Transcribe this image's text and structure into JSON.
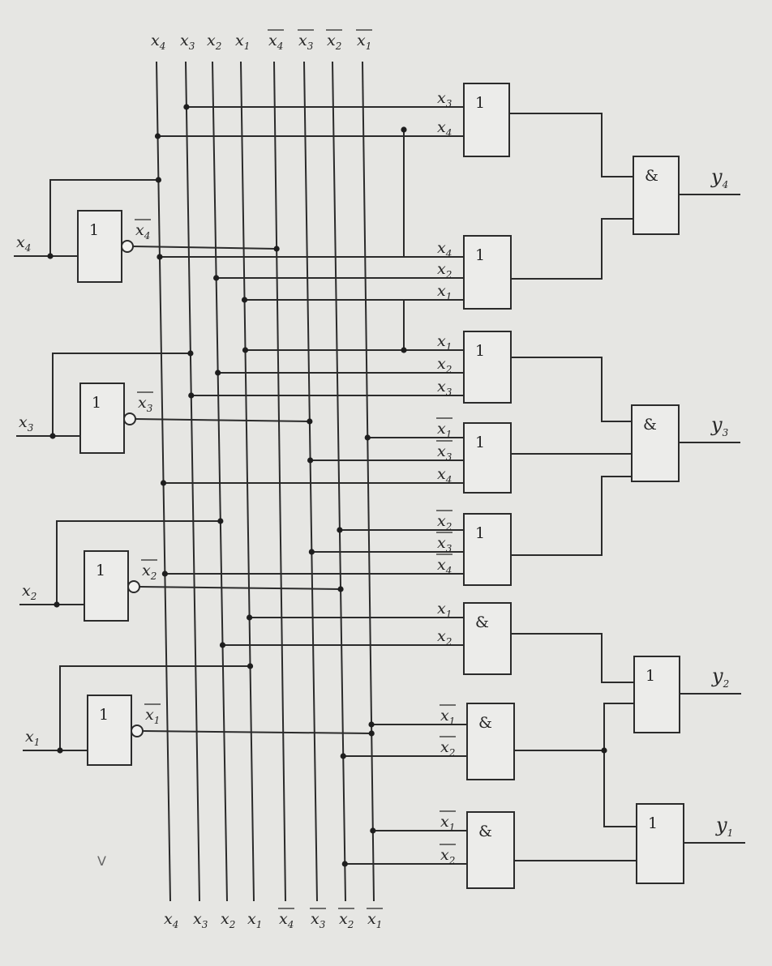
{
  "bus_labels_top": [
    "x4",
    "x3",
    "x2",
    "x1",
    "x̄4",
    "x̄3",
    "x̄2",
    "x̄1"
  ],
  "bus_labels_bottom": [
    "x4",
    "x3",
    "x2",
    "x1",
    "x̄4",
    "x̄3",
    "x̄2",
    "x̄1"
  ],
  "inputs": [
    "x4",
    "x3",
    "x2",
    "x1"
  ],
  "inverter_symbol": "1",
  "inverter_outputs": [
    "x̄4",
    "x̄3",
    "x̄2",
    "x̄1"
  ],
  "outputs": [
    "y4",
    "y3",
    "y2",
    "y1"
  ],
  "gates": [
    {
      "symbol": "1",
      "inputs": [
        "x3",
        "x4"
      ]
    },
    {
      "symbol": "1",
      "inputs": [
        "x4",
        "x2",
        "x1"
      ]
    },
    {
      "symbol": "1",
      "inputs": [
        "x1",
        "x2",
        "x3"
      ]
    },
    {
      "symbol": "1",
      "inputs": [
        "x̄1",
        "x̄3",
        "x4"
      ]
    },
    {
      "symbol": "1",
      "inputs": [
        "x̄2",
        "x̄3",
        "x̄4"
      ]
    },
    {
      "symbol": "&",
      "inputs": [
        "x1",
        "x2"
      ]
    },
    {
      "symbol": "&",
      "inputs": [
        "x̄1",
        "x̄2"
      ]
    },
    {
      "symbol": "&",
      "inputs": [
        "x̄1",
        "x̄2"
      ]
    }
  ],
  "output_gates": [
    {
      "symbol": "&",
      "output": "y4"
    },
    {
      "symbol": "&",
      "output": "y3"
    },
    {
      "symbol": "1",
      "output": "y2"
    },
    {
      "symbol": "1",
      "output": "y1"
    }
  ],
  "stray_mark": "V"
}
